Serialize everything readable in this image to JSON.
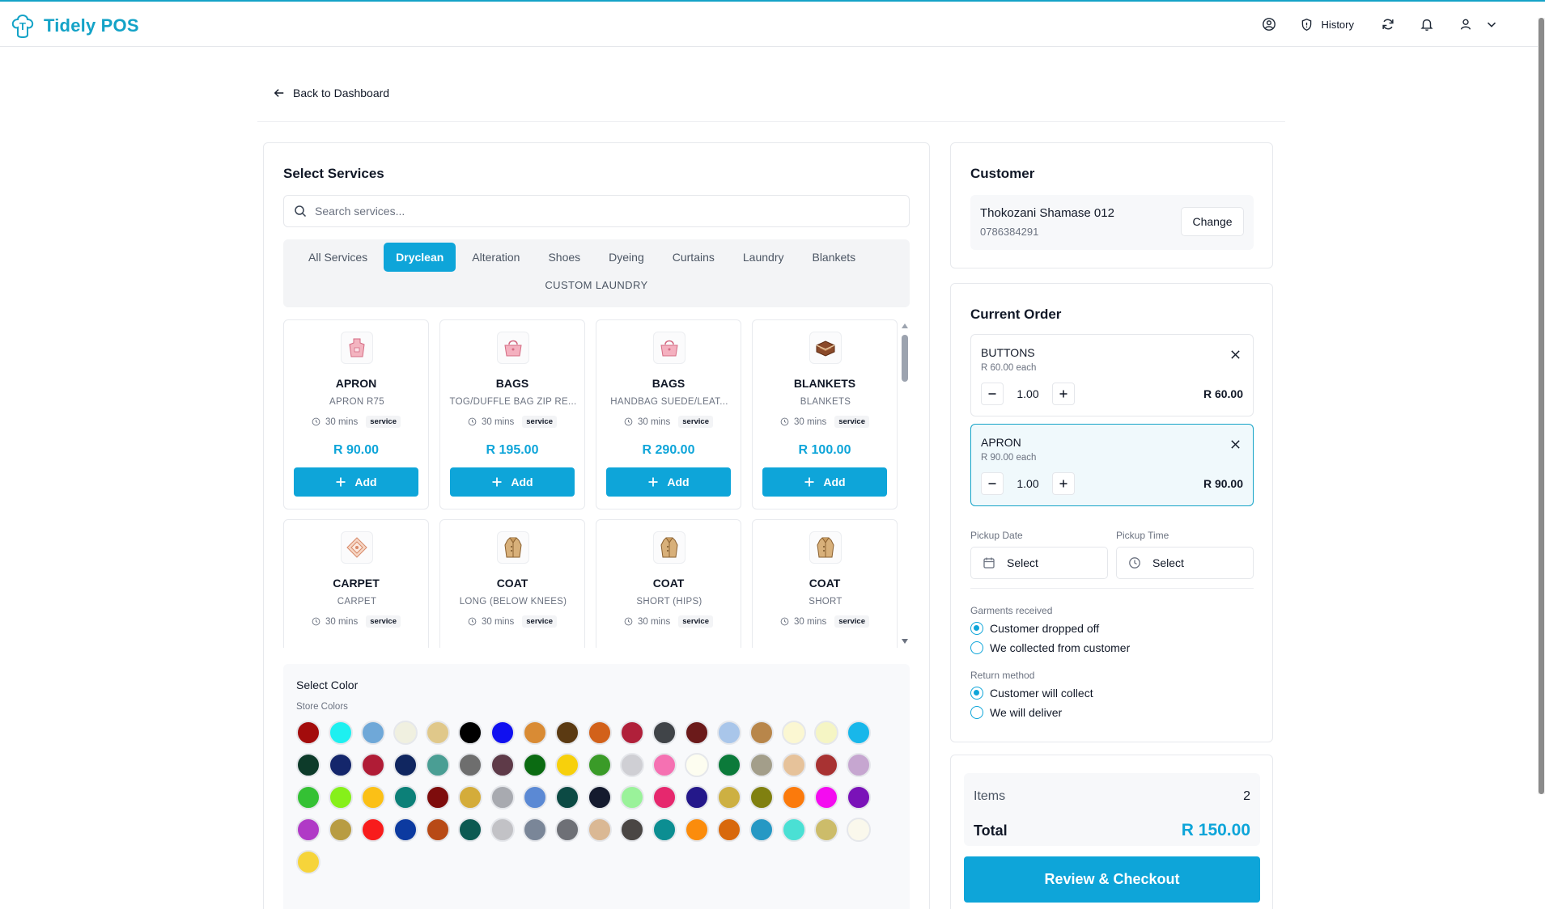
{
  "app": {
    "name": "Tidely POS"
  },
  "topbar": {
    "history_label": "History"
  },
  "nav": {
    "back_label": "Back to Dashboard"
  },
  "services": {
    "title": "Select Services",
    "search_placeholder": "Search services...",
    "tabs": [
      "All Services",
      "Dryclean",
      "Alteration",
      "Shoes",
      "Dyeing",
      "Curtains",
      "Laundry",
      "Blankets"
    ],
    "active_tab": "Dryclean",
    "extra_tab": "CUSTOM LAUNDRY",
    "add_label": "Add",
    "items": [
      {
        "name": "APRON",
        "desc": "APRON R75",
        "time": "30 mins",
        "badge": "service",
        "price": "R 90.00",
        "icon": "apron-icon"
      },
      {
        "name": "BAGS",
        "desc": "TOG/DUFFLE BAG ZIP RE...",
        "time": "30 mins",
        "badge": "service",
        "price": "R 195.00",
        "icon": "bag-icon"
      },
      {
        "name": "BAGS",
        "desc": "HANDBAG SUEDE/LEAT...",
        "time": "30 mins",
        "badge": "service",
        "price": "R 290.00",
        "icon": "bag-icon"
      },
      {
        "name": "BLANKETS",
        "desc": "BLANKETS",
        "time": "30 mins",
        "badge": "service",
        "price": "R 100.00",
        "icon": "blanket-icon"
      },
      {
        "name": "CARPET",
        "desc": "CARPET",
        "time": "30 mins",
        "badge": "service",
        "price": "",
        "icon": "carpet-icon"
      },
      {
        "name": "COAT",
        "desc": "LONG (BELOW KNEES)",
        "time": "30 mins",
        "badge": "service",
        "price": "",
        "icon": "coat-icon"
      },
      {
        "name": "COAT",
        "desc": "SHORT (HIPS)",
        "time": "30 mins",
        "badge": "service",
        "price": "",
        "icon": "coat-icon"
      },
      {
        "name": "COAT",
        "desc": "SHORT",
        "time": "30 mins",
        "badge": "service",
        "price": "",
        "icon": "coat-icon"
      }
    ]
  },
  "colors": {
    "title": "Select Color",
    "subtitle": "Store Colors",
    "swatches": [
      "#a30c0c",
      "#1ef0f0",
      "#6fa8d8",
      "#f0f0e0",
      "#e0c88a",
      "#000000",
      "#1010f0",
      "#d98b34",
      "#5b3a12",
      "#d2611a",
      "#b0203a",
      "#404448",
      "#6b1a1a",
      "#a9c6ea",
      "#b8864a",
      "#fbf7d2",
      "#f5f5c4",
      "#18b7ea",
      "#0d3b2a",
      "#14266b",
      "#b01c36",
      "#102660",
      "#4a9e94",
      "#6e6e6e",
      "#5e3a48",
      "#0b6b12",
      "#f7d00c",
      "#3a9b28",
      "#cfcfd4",
      "#f571b2",
      "#fdfdf0",
      "#0b7a3a",
      "#a39e8a",
      "#e6c29a",
      "#a83232",
      "#c6a6d0",
      "#34c134",
      "#86f01a",
      "#fbc016",
      "#0c8078",
      "#7e0c0c",
      "#d4ac3a",
      "#a8aab0",
      "#5b89d4",
      "#0c4a44",
      "#141a2e",
      "#9af29a",
      "#e6286e",
      "#24188a",
      "#cdb042",
      "#808010",
      "#fb7a0c",
      "#f40cf0",
      "#7a12b8",
      "#b03ac6",
      "#b89c42",
      "#f81c1c",
      "#0c3aa0",
      "#b84a16",
      "#0c5a52",
      "#c2c2c6",
      "#7a8698",
      "#6e7076",
      "#dab894",
      "#4a4644",
      "#0c8e92",
      "#fb8c0c",
      "#d8680c",
      "#2698c4",
      "#4ae0d4",
      "#ccbc6a",
      "#faf8ec",
      "#f6d43a"
    ]
  },
  "customer": {
    "title": "Customer",
    "name": "Thokozani Shamase 012",
    "phone": "0786384291",
    "change_label": "Change"
  },
  "order": {
    "title": "Current Order",
    "items": [
      {
        "name": "BUTTONS",
        "each": "R 60.00 each",
        "qty": "1.00",
        "total": "R 60.00"
      },
      {
        "name": "APRON",
        "each": "R 90.00 each",
        "qty": "1.00",
        "total": "R 90.00"
      }
    ],
    "pickup_date_label": "Pickup Date",
    "pickup_date_value": "Select",
    "pickup_time_label": "Pickup Time",
    "pickup_time_value": "Select",
    "garments_label": "Garments received",
    "garments_options": [
      "Customer dropped off",
      "We collected from customer"
    ],
    "return_label": "Return method",
    "return_options": [
      "Customer will collect",
      "We will deliver"
    ]
  },
  "summary": {
    "items_label": "Items",
    "items_count": "2",
    "total_label": "Total",
    "total_value": "R 150.00",
    "checkout_label": "Review & Checkout"
  },
  "accent_color": "#0ea5d9"
}
